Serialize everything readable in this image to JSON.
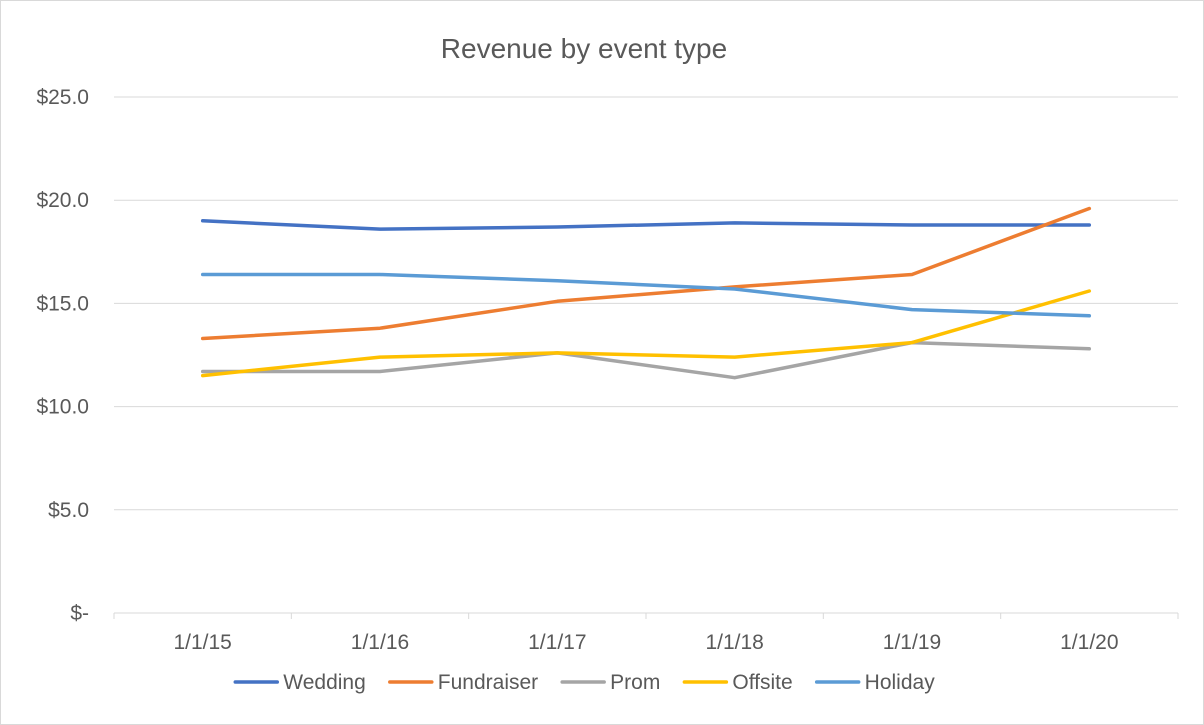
{
  "chart_data": {
    "type": "line",
    "title": "Revenue by event type",
    "xlabel": "",
    "ylabel": "",
    "categories": [
      "1/1/15",
      "1/1/16",
      "1/1/17",
      "1/1/18",
      "1/1/19",
      "1/1/20"
    ],
    "ylim": [
      0,
      25
    ],
    "yticks": [
      0,
      5,
      10,
      15,
      20,
      25
    ],
    "ytick_labels": [
      "$-",
      "$5.0",
      "$10.0",
      "$15.0",
      "$20.0",
      "$25.0"
    ],
    "grid": true,
    "legend_position": "bottom",
    "series": [
      {
        "name": "Wedding",
        "color": "#4472c4",
        "values": [
          19.0,
          18.6,
          18.7,
          18.9,
          18.8,
          18.8
        ]
      },
      {
        "name": "Fundraiser",
        "color": "#ed7d31",
        "values": [
          13.3,
          13.8,
          15.1,
          15.8,
          16.4,
          19.6
        ]
      },
      {
        "name": "Prom",
        "color": "#a5a5a5",
        "values": [
          11.7,
          11.7,
          12.6,
          11.4,
          13.1,
          12.8
        ]
      },
      {
        "name": "Offsite",
        "color": "#ffc000",
        "values": [
          11.5,
          12.4,
          12.6,
          12.4,
          13.1,
          15.6
        ]
      },
      {
        "name": "Holiday",
        "color": "#5b9bd5",
        "values": [
          16.4,
          16.4,
          16.1,
          15.7,
          14.7,
          14.4
        ]
      }
    ]
  }
}
